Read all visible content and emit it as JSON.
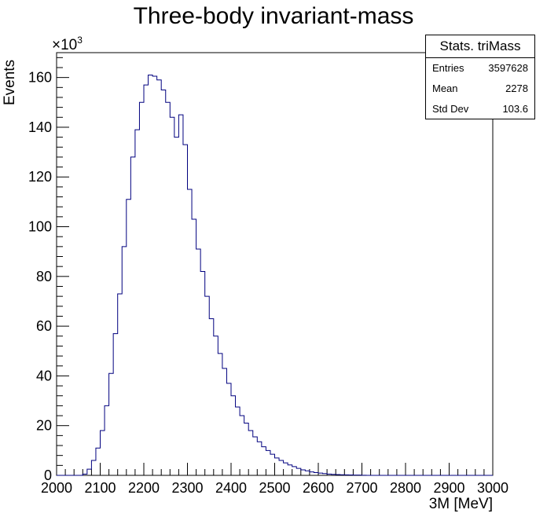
{
  "chart_data": {
    "type": "bar",
    "title": "Three-body invariant-mass",
    "xlabel": "3M [MeV]",
    "ylabel": "Events",
    "y_multiplier": "×10",
    "y_multiplier_exp": "3",
    "xlim": [
      2000,
      3000
    ],
    "ylim": [
      0,
      170
    ],
    "x_ticks": [
      2000,
      2100,
      2200,
      2300,
      2400,
      2500,
      2600,
      2700,
      2800,
      2900,
      3000
    ],
    "y_ticks": [
      0,
      20,
      40,
      60,
      80,
      100,
      120,
      140,
      160
    ],
    "bin_width": 10,
    "bin_start": 2000,
    "line_color": "#00007f",
    "values": [
      0,
      0,
      0,
      0,
      0,
      0,
      0.5,
      2.5,
      6,
      11,
      18,
      28,
      41,
      57,
      73,
      92,
      111,
      128,
      139,
      150,
      157,
      161,
      160.5,
      159,
      155,
      150,
      144,
      136,
      145,
      133,
      115,
      103,
      91,
      82,
      72,
      63,
      56,
      49,
      43,
      37,
      32,
      27.5,
      24,
      21,
      18,
      15.5,
      13.5,
      11.5,
      10,
      8.5,
      7,
      6,
      5,
      4.2,
      3.5,
      2.8,
      2.2,
      1.8,
      1.4,
      1.1,
      0.9,
      0.7,
      0.5,
      0.4,
      0.3,
      0.25,
      0.2,
      0.15,
      0.1,
      0.1,
      0.05,
      0,
      0,
      0,
      0,
      0,
      0,
      0,
      0,
      0,
      0,
      0,
      0,
      0,
      0,
      0,
      0,
      0,
      0,
      0,
      0,
      0,
      0,
      0,
      0,
      0,
      0,
      0,
      0,
      0
    ],
    "stats": {
      "title": "Stats. triMass",
      "entries_label": "Entries",
      "entries_value": "3597628",
      "mean_label": "Mean",
      "mean_value": "2278",
      "stddev_label": "Std Dev",
      "stddev_value": "103.6"
    }
  }
}
